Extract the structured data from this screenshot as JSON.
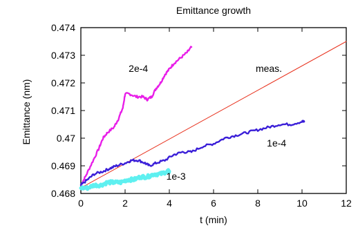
{
  "chart_data": {
    "type": "line",
    "title": "Emittance growth",
    "xlabel": "t (min)",
    "ylabel": "Emittance (nm)",
    "xlim": [
      0,
      12
    ],
    "ylim": [
      0.468,
      0.474
    ],
    "xticks": [
      0,
      2,
      4,
      6,
      8,
      10,
      12
    ],
    "yticks": [
      0.468,
      0.469,
      0.47,
      0.471,
      0.472,
      0.473,
      0.474
    ],
    "xtick_labels": [
      "0",
      "2",
      "4",
      "6",
      "8",
      "10",
      "12"
    ],
    "ytick_labels": [
      "0.468",
      "0.469",
      "0.47",
      "0.471",
      "0.472",
      "0.473",
      "0.474"
    ],
    "grid": false,
    "series": [
      {
        "name": "meas.",
        "color": "#e8321e",
        "style": "thin",
        "x": [
          0,
          12
        ],
        "y": [
          0.4682,
          0.4735
        ]
      },
      {
        "name": "2e-4",
        "color": "#e81ee8",
        "style": "noisy",
        "x": [
          0,
          0.2,
          0.5,
          0.8,
          1.0,
          1.2,
          1.5,
          1.7,
          1.9,
          2.0,
          2.2,
          2.5,
          2.8,
          3.0,
          3.2,
          3.4,
          3.6,
          3.8,
          4.0,
          4.2,
          4.5,
          4.8,
          5.0
        ],
        "y": [
          0.4683,
          0.4686,
          0.4691,
          0.4696,
          0.47,
          0.4702,
          0.4704,
          0.4707,
          0.4711,
          0.4716,
          0.4716,
          0.4715,
          0.4715,
          0.4714,
          0.4715,
          0.4718,
          0.472,
          0.4723,
          0.4725,
          0.4727,
          0.4729,
          0.4731,
          0.4733
        ]
      },
      {
        "name": "1e-4",
        "color": "#3a1ed8",
        "style": "noisy",
        "x": [
          0,
          0.3,
          0.6,
          1.0,
          1.3,
          1.6,
          2.0,
          2.3,
          2.6,
          2.9,
          3.1,
          3.4,
          3.8,
          4.2,
          4.6,
          5.0,
          5.5,
          6.0,
          6.5,
          7.0,
          7.5,
          8.0,
          8.5,
          9.0,
          9.5,
          10.0,
          10.1
        ],
        "y": [
          0.4683,
          0.4685,
          0.4687,
          0.4688,
          0.4689,
          0.469,
          0.4691,
          0.4692,
          0.4692,
          0.4691,
          0.469,
          0.4691,
          0.4692,
          0.4694,
          0.4695,
          0.4695,
          0.4697,
          0.4698,
          0.47,
          0.4701,
          0.4702,
          0.4703,
          0.4704,
          0.4705,
          0.4705,
          0.4706,
          0.4706
        ]
      },
      {
        "name": "1e-3",
        "color": "#5ef0f0",
        "style": "thick",
        "x": [
          0,
          0.3,
          0.6,
          0.9,
          1.2,
          1.5,
          1.8,
          2.1,
          2.4,
          2.7,
          3.0,
          3.3,
          3.6,
          3.9,
          4.0
        ],
        "y": [
          0.4682,
          0.4682,
          0.4683,
          0.4683,
          0.4684,
          0.4684,
          0.4684,
          0.4685,
          0.4685,
          0.4686,
          0.4686,
          0.4687,
          0.4687,
          0.4688,
          0.4688
        ]
      }
    ],
    "annotations": [
      {
        "series": "2e-4",
        "text": "2e-4",
        "x": 2.6,
        "y": 0.4724
      },
      {
        "series": "meas.",
        "text": "meas.",
        "x": 8.5,
        "y": 0.4724
      },
      {
        "series": "1e-4",
        "text": "1e-4",
        "x": 8.85,
        "y": 0.4697
      },
      {
        "series": "1e-3",
        "text": "1e-3",
        "x": 4.3,
        "y": 0.4685
      }
    ]
  }
}
